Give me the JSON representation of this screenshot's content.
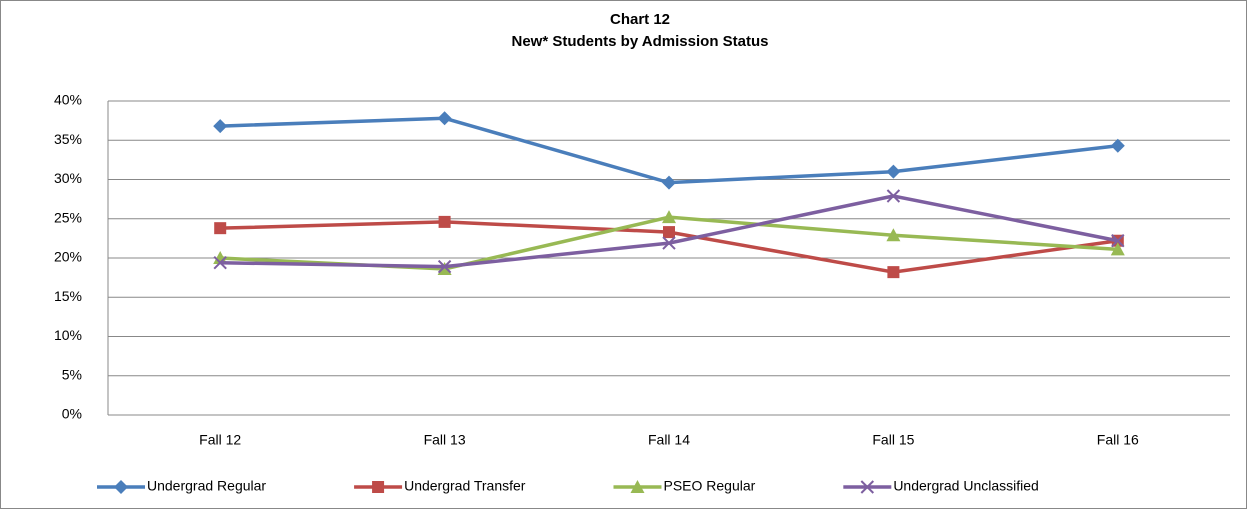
{
  "chart_data": {
    "type": "line",
    "title": "Chart 12",
    "subtitle": "New* Students by Admission Status",
    "categories": [
      "Fall 12",
      "Fall 13",
      "Fall 14",
      "Fall 15",
      "Fall 16"
    ],
    "series": [
      {
        "name": "Undergrad Regular",
        "color": "#4a7ebb",
        "marker": "diamond",
        "values": [
          36.8,
          37.8,
          29.6,
          31.0,
          34.3
        ]
      },
      {
        "name": "Undergrad Transfer",
        "color": "#be4b48",
        "marker": "square",
        "values": [
          23.8,
          24.6,
          23.3,
          18.2,
          22.2
        ]
      },
      {
        "name": "PSEO Regular",
        "color": "#98b954",
        "marker": "triangle",
        "values": [
          20.0,
          18.6,
          25.2,
          22.9,
          21.1
        ]
      },
      {
        "name": "Undergrad Unclassified",
        "color": "#7d5fa0",
        "marker": "x",
        "values": [
          19.4,
          18.9,
          21.9,
          27.9,
          22.2
        ]
      }
    ],
    "ylim": [
      0,
      40
    ],
    "yticks": [
      {
        "value": 0,
        "label": "0%"
      },
      {
        "value": 5,
        "label": "5%"
      },
      {
        "value": 10,
        "label": "10%"
      },
      {
        "value": 15,
        "label": "15%"
      },
      {
        "value": 20,
        "label": "20%"
      },
      {
        "value": 25,
        "label": "25%"
      },
      {
        "value": 30,
        "label": "30%"
      },
      {
        "value": 35,
        "label": "35%"
      },
      {
        "value": 40,
        "label": "40%"
      }
    ],
    "grid": true,
    "legend": "bottom"
  }
}
